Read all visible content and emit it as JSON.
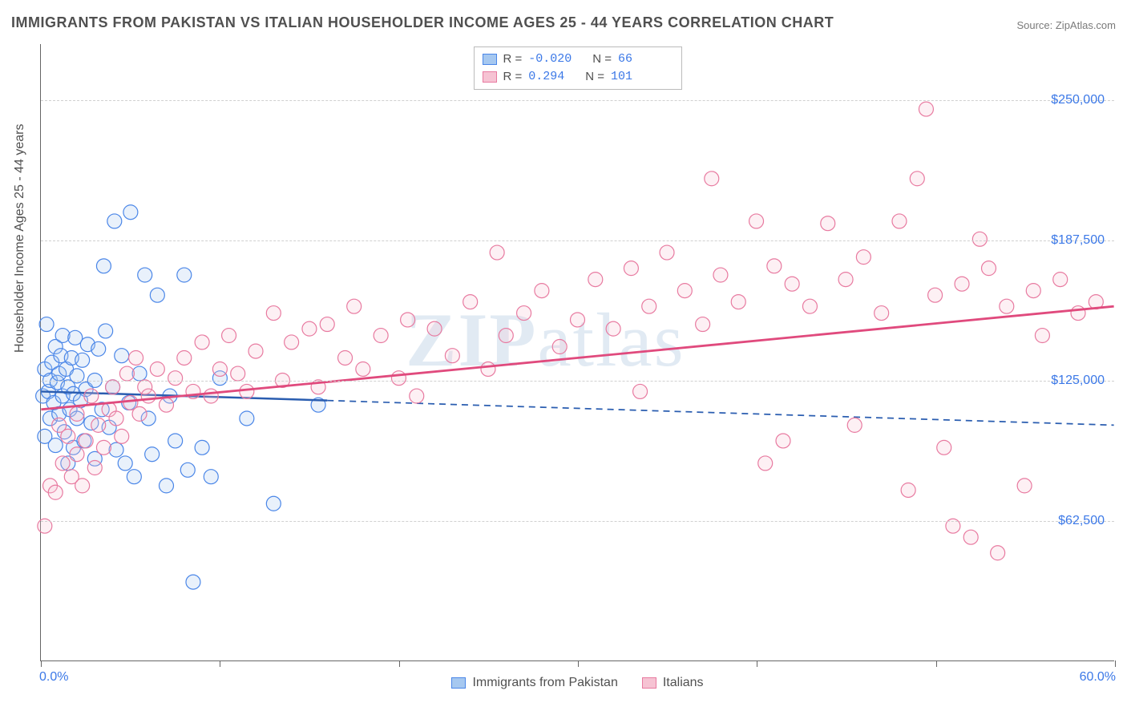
{
  "title": "IMMIGRANTS FROM PAKISTAN VS ITALIAN HOUSEHOLDER INCOME AGES 25 - 44 YEARS CORRELATION CHART",
  "source_label": "Source: ",
  "source_value": "ZipAtlas.com",
  "y_axis_title": "Householder Income Ages 25 - 44 years",
  "watermark": {
    "bold": "ZIP",
    "rest": "atlas"
  },
  "chart": {
    "type": "scatter-with-regression",
    "background_color": "#ffffff",
    "grid_color": "#d0d0d0",
    "xlim": [
      0,
      60
    ],
    "ylim": [
      0,
      275000
    ],
    "x_ticks": [
      0,
      10,
      20,
      30,
      40,
      50,
      60
    ],
    "y_gridlines": [
      62500,
      125000,
      187500,
      250000
    ],
    "y_tick_labels": [
      "$62,500",
      "$125,000",
      "$187,500",
      "$250,000"
    ],
    "y_tick_color": "#3b78e7",
    "x_min_label": "0.0%",
    "x_max_label": "60.0%",
    "x_label_color": "#3b78e7",
    "marker_radius": 9,
    "marker_stroke_width": 1.2,
    "marker_fill_opacity": 0.25
  },
  "series": [
    {
      "id": "pakistan",
      "label": "Immigrants from Pakistan",
      "color_stroke": "#4a86e8",
      "color_fill": "#a6c8f0",
      "trend": {
        "y_at_xmin": 120000,
        "y_at_xmax": 105000,
        "solid_until_x": 16,
        "line_color": "#2a5db0",
        "line_width": 2.5
      },
      "stats": {
        "R": "-0.020",
        "N": "66"
      },
      "points": [
        [
          0.1,
          118000
        ],
        [
          0.2,
          130000
        ],
        [
          0.2,
          100000
        ],
        [
          0.3,
          150000
        ],
        [
          0.4,
          120000
        ],
        [
          0.5,
          125000
        ],
        [
          0.5,
          108000
        ],
        [
          0.6,
          133000
        ],
        [
          0.7,
          115000
        ],
        [
          0.8,
          140000
        ],
        [
          0.8,
          96000
        ],
        [
          0.9,
          124000
        ],
        [
          1.0,
          128000
        ],
        [
          1.0,
          110000
        ],
        [
          1.1,
          136000
        ],
        [
          1.2,
          118000
        ],
        [
          1.2,
          145000
        ],
        [
          1.3,
          102000
        ],
        [
          1.4,
          130000
        ],
        [
          1.5,
          122000
        ],
        [
          1.5,
          88000
        ],
        [
          1.6,
          112000
        ],
        [
          1.7,
          135000
        ],
        [
          1.8,
          119000
        ],
        [
          1.8,
          95000
        ],
        [
          1.9,
          144000
        ],
        [
          2.0,
          108000
        ],
        [
          2.0,
          127000
        ],
        [
          2.2,
          116000
        ],
        [
          2.3,
          134000
        ],
        [
          2.4,
          98000
        ],
        [
          2.5,
          121000
        ],
        [
          2.6,
          141000
        ],
        [
          2.8,
          106000
        ],
        [
          3.0,
          125000
        ],
        [
          3.0,
          90000
        ],
        [
          3.2,
          139000
        ],
        [
          3.4,
          112000
        ],
        [
          3.5,
          176000
        ],
        [
          3.6,
          147000
        ],
        [
          3.8,
          104000
        ],
        [
          4.0,
          122000
        ],
        [
          4.1,
          196000
        ],
        [
          4.2,
          94000
        ],
        [
          4.5,
          136000
        ],
        [
          4.7,
          88000
        ],
        [
          4.9,
          115000
        ],
        [
          5.0,
          200000
        ],
        [
          5.2,
          82000
        ],
        [
          5.5,
          128000
        ],
        [
          5.8,
          172000
        ],
        [
          6.0,
          108000
        ],
        [
          6.2,
          92000
        ],
        [
          6.5,
          163000
        ],
        [
          7.0,
          78000
        ],
        [
          7.2,
          118000
        ],
        [
          7.5,
          98000
        ],
        [
          8.0,
          172000
        ],
        [
          8.2,
          85000
        ],
        [
          9.0,
          95000
        ],
        [
          9.5,
          82000
        ],
        [
          10.0,
          126000
        ],
        [
          11.5,
          108000
        ],
        [
          13.0,
          70000
        ],
        [
          15.5,
          114000
        ],
        [
          8.5,
          35000
        ]
      ]
    },
    {
      "id": "italians",
      "label": "Italians",
      "color_stroke": "#e87aa0",
      "color_fill": "#f6c3d3",
      "trend": {
        "y_at_xmin": 112000,
        "y_at_xmax": 158000,
        "solid_until_x": 60,
        "line_color": "#e04a7d",
        "line_width": 2.8
      },
      "stats": {
        "R": "0.294",
        "N": "101"
      },
      "points": [
        [
          0.2,
          60000
        ],
        [
          0.5,
          78000
        ],
        [
          0.8,
          75000
        ],
        [
          1.0,
          105000
        ],
        [
          1.2,
          88000
        ],
        [
          1.5,
          100000
        ],
        [
          1.7,
          82000
        ],
        [
          2.0,
          110000
        ],
        [
          2.0,
          92000
        ],
        [
          2.3,
          78000
        ],
        [
          2.5,
          98000
        ],
        [
          2.8,
          118000
        ],
        [
          3.0,
          86000
        ],
        [
          3.2,
          105000
        ],
        [
          3.5,
          95000
        ],
        [
          3.8,
          112000
        ],
        [
          4.0,
          122000
        ],
        [
          4.2,
          108000
        ],
        [
          4.5,
          100000
        ],
        [
          4.8,
          128000
        ],
        [
          5.0,
          115000
        ],
        [
          5.3,
          135000
        ],
        [
          5.5,
          110000
        ],
        [
          5.8,
          122000
        ],
        [
          6.0,
          118000
        ],
        [
          6.5,
          130000
        ],
        [
          7.0,
          114000
        ],
        [
          7.5,
          126000
        ],
        [
          8.0,
          135000
        ],
        [
          8.5,
          120000
        ],
        [
          9.0,
          142000
        ],
        [
          9.5,
          118000
        ],
        [
          10.0,
          130000
        ],
        [
          10.5,
          145000
        ],
        [
          11.0,
          128000
        ],
        [
          11.5,
          120000
        ],
        [
          12.0,
          138000
        ],
        [
          13.0,
          155000
        ],
        [
          13.5,
          125000
        ],
        [
          14.0,
          142000
        ],
        [
          15.0,
          148000
        ],
        [
          15.5,
          122000
        ],
        [
          16.0,
          150000
        ],
        [
          17.0,
          135000
        ],
        [
          17.5,
          158000
        ],
        [
          18.0,
          130000
        ],
        [
          19.0,
          145000
        ],
        [
          20.0,
          126000
        ],
        [
          20.5,
          152000
        ],
        [
          21.0,
          118000
        ],
        [
          22.0,
          148000
        ],
        [
          23.0,
          136000
        ],
        [
          24.0,
          160000
        ],
        [
          25.0,
          130000
        ],
        [
          25.5,
          182000
        ],
        [
          26.0,
          145000
        ],
        [
          27.0,
          155000
        ],
        [
          28.0,
          165000
        ],
        [
          29.0,
          140000
        ],
        [
          30.0,
          152000
        ],
        [
          31.0,
          170000
        ],
        [
          32.0,
          148000
        ],
        [
          33.0,
          175000
        ],
        [
          33.5,
          120000
        ],
        [
          34.0,
          158000
        ],
        [
          35.0,
          182000
        ],
        [
          36.0,
          165000
        ],
        [
          37.0,
          150000
        ],
        [
          37.5,
          215000
        ],
        [
          38.0,
          172000
        ],
        [
          39.0,
          160000
        ],
        [
          40.0,
          196000
        ],
        [
          40.5,
          88000
        ],
        [
          41.0,
          176000
        ],
        [
          41.5,
          98000
        ],
        [
          42.0,
          168000
        ],
        [
          43.0,
          158000
        ],
        [
          44.0,
          195000
        ],
        [
          45.0,
          170000
        ],
        [
          45.5,
          105000
        ],
        [
          46.0,
          180000
        ],
        [
          47.0,
          155000
        ],
        [
          48.0,
          196000
        ],
        [
          48.5,
          76000
        ],
        [
          49.0,
          215000
        ],
        [
          49.5,
          246000
        ],
        [
          50.0,
          163000
        ],
        [
          50.5,
          95000
        ],
        [
          51.0,
          60000
        ],
        [
          51.5,
          168000
        ],
        [
          52.0,
          55000
        ],
        [
          52.5,
          188000
        ],
        [
          53.0,
          175000
        ],
        [
          53.5,
          48000
        ],
        [
          54.0,
          158000
        ],
        [
          55.0,
          78000
        ],
        [
          55.5,
          165000
        ],
        [
          56.0,
          145000
        ],
        [
          57.0,
          170000
        ],
        [
          58.0,
          155000
        ],
        [
          59.0,
          160000
        ]
      ]
    }
  ],
  "legend_top": {
    "r_label": "R =",
    "n_label": "N ="
  }
}
